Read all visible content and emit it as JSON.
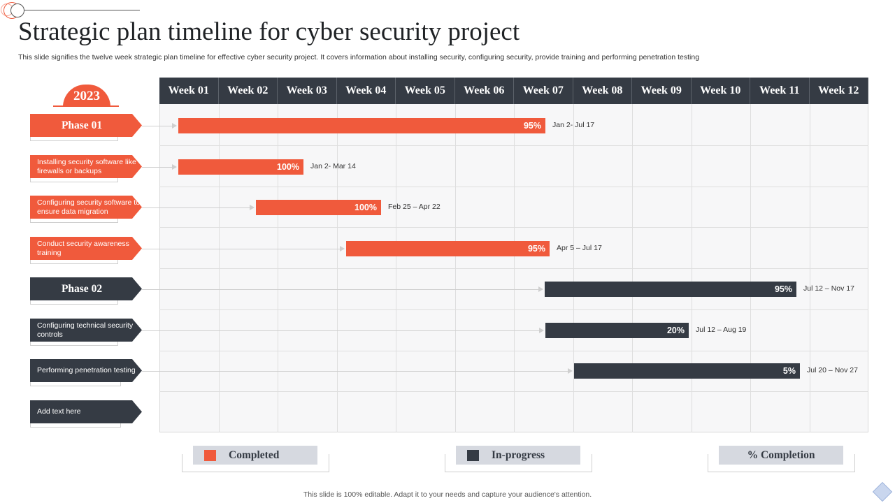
{
  "title": "Strategic plan timeline for cyber security project",
  "subtitle": "This slide signifies the twelve week strategic plan timeline  for effective cyber security project. It covers information about installing  security, configuring security, provide training and performing penetration testing",
  "year": "2023",
  "weeks": [
    "Week 01",
    "Week 02",
    "Week 03",
    "Week 04",
    "Week 05",
    "Week 06",
    "Week 07",
    "Week 08",
    "Week 09",
    "Week 10",
    "Week 11",
    "Week 12"
  ],
  "rows": [
    {
      "label": "Phase 01",
      "style": "big",
      "color": "orange",
      "bar": {
        "value": "95%",
        "dates": "Jan 2- Jul 17",
        "color": "orange"
      }
    },
    {
      "label": "Installing security software like  firewalls or backups",
      "style": "small",
      "color": "orange",
      "bar": {
        "value": "100%",
        "dates": "Jan 2- Mar 14",
        "color": "orange"
      }
    },
    {
      "label": "Configuring security software to ensure data migration",
      "style": "small",
      "color": "orange",
      "bar": {
        "value": "100%",
        "dates": "Feb 25 – Apr 22",
        "color": "orange"
      }
    },
    {
      "label": "Conduct security awareness training",
      "style": "small",
      "color": "orange",
      "bar": {
        "value": "95%",
        "dates": "Apr 5 – Jul 17",
        "color": "orange"
      }
    },
    {
      "label": "Phase 02",
      "style": "big",
      "color": "dark",
      "bar": {
        "value": "95%",
        "dates": "Jul 12 – Nov 17",
        "color": "dark"
      }
    },
    {
      "label": "Configuring technical security controls",
      "style": "small",
      "color": "dark",
      "bar": {
        "value": "20%",
        "dates": "Jul 12 – Aug 19",
        "color": "dark"
      }
    },
    {
      "label": "Performing penetration testing",
      "style": "small",
      "color": "dark",
      "bar": {
        "value": "5%",
        "dates": "Jul 20 – Nov 27",
        "color": "dark"
      }
    },
    {
      "label": "Add text here",
      "style": "small",
      "color": "dark",
      "bar": null
    }
  ],
  "legend": {
    "completed": "Completed",
    "in_progress": "In-progress",
    "completion": "% Completion"
  },
  "footer": "This slide is 100% editable. Adapt it to your needs and capture your audience's attention.",
  "colors": {
    "accent": "#f05a3c",
    "dark": "#353b44",
    "legend_box": "#d6d9e0"
  }
}
